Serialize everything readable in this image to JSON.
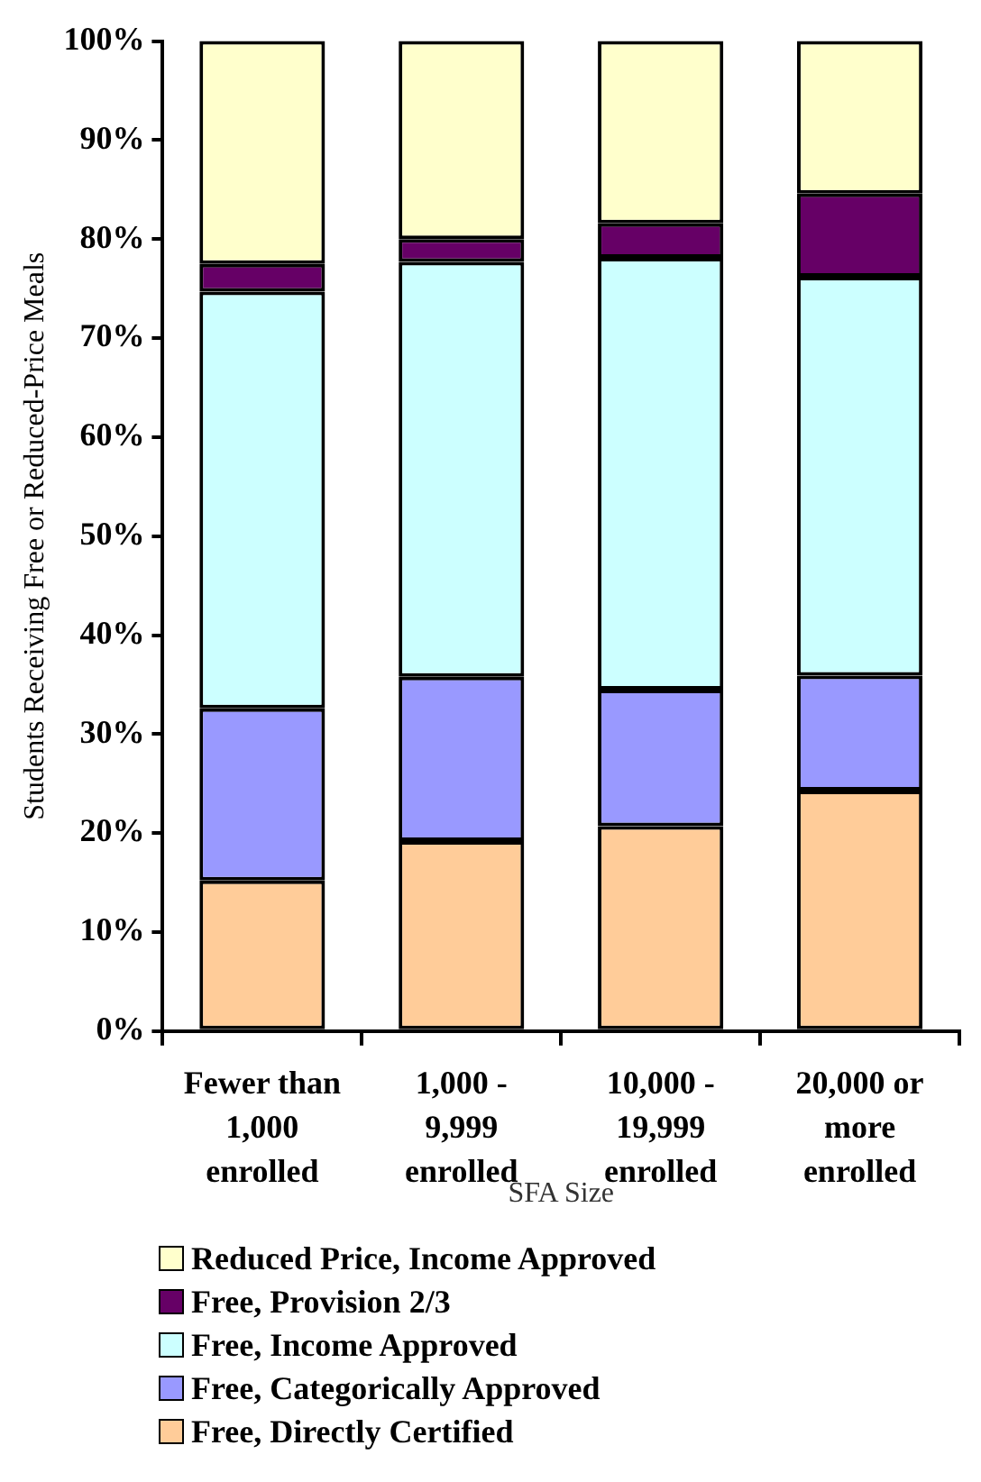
{
  "chart_data": {
    "type": "bar",
    "stacked": true,
    "xlabel": "SFA Size",
    "ylabel": "Students Receiving Free or Reduced-Price Meals",
    "categories": [
      "Fewer than 1,000 enrolled",
      "1,000 - 9,999 enrolled",
      "10,000 - 19,999 enrolled",
      "20,000 or more enrolled"
    ],
    "series": [
      {
        "name": "Free, Directly Certified",
        "color": "#ffcc99",
        "values": [
          15.2,
          19.2,
          20.7,
          24.3
        ]
      },
      {
        "name": "Free, Categorically Approved",
        "color": "#9999ff",
        "values": [
          17.4,
          16.6,
          13.8,
          11.6
        ]
      },
      {
        "name": "Free, Income Approved",
        "color": "#ccffff",
        "values": [
          42.1,
          41.9,
          43.6,
          40.3
        ]
      },
      {
        "name": "Free, Provision 2/3",
        "color": "#660066",
        "values": [
          2.8,
          2.3,
          3.5,
          8.4
        ]
      },
      {
        "name": "Reduced Price, Income Approved",
        "color": "#ffffcc",
        "values": [
          22.5,
          20.0,
          18.4,
          15.4
        ]
      }
    ],
    "ylim": [
      0,
      100
    ],
    "yticks": [
      {
        "value": 0,
        "label": "0%"
      },
      {
        "value": 10,
        "label": "10%"
      },
      {
        "value": 20,
        "label": "20%"
      },
      {
        "value": 30,
        "label": "30%"
      },
      {
        "value": 40,
        "label": "40%"
      },
      {
        "value": 50,
        "label": "50%"
      },
      {
        "value": 60,
        "label": "60%"
      },
      {
        "value": 70,
        "label": "70%"
      },
      {
        "value": 80,
        "label": "80%"
      },
      {
        "value": 90,
        "label": "90%"
      },
      {
        "value": 100,
        "label": "100%"
      }
    ],
    "grid": false,
    "legend": "bottom"
  }
}
